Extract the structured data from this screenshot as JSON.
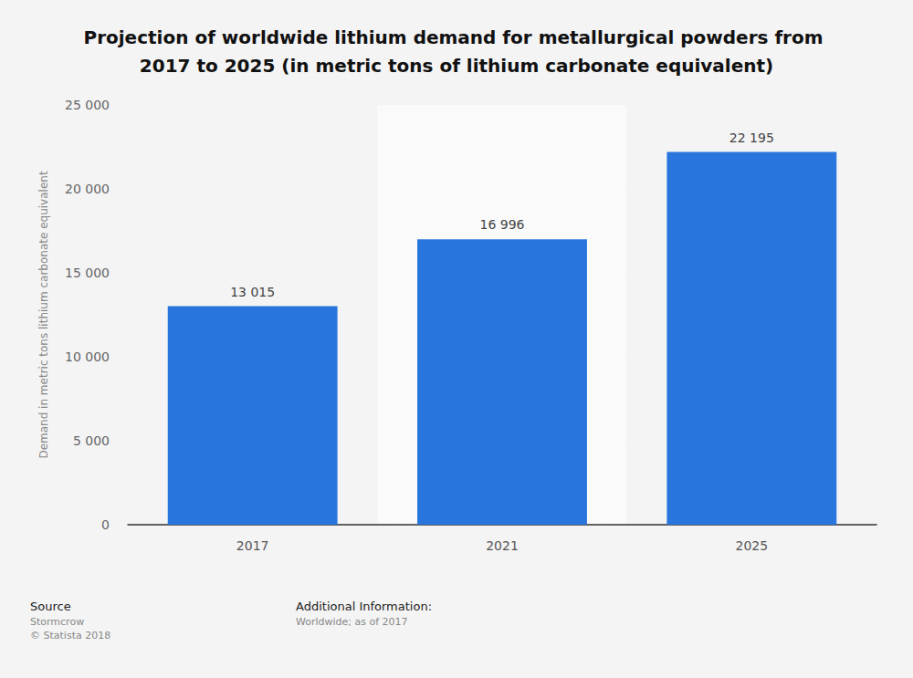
{
  "chart_data": {
    "type": "bar",
    "title": "Projection of worldwide lithium demand for metallurgical powders from 2017 to 2025 (in metric tons of lithium carbonate equivalent)",
    "y_label": "Demand in metric tons lithium carbonate equivalent",
    "categories": [
      "2017",
      "2021",
      "2025"
    ],
    "values": [
      13015,
      16996,
      22195
    ],
    "value_labels": [
      "13 015",
      "16 996",
      "22 195"
    ],
    "color": "#2876dd",
    "ylim": [
      0,
      25000
    ],
    "yticks": [
      0,
      {
        "value": 5000,
        "label": "5 000"
      },
      {
        "value": 10000,
        "label": "10 000"
      },
      {
        "value": 15000,
        "label": "15 000"
      },
      {
        "value": 20000,
        "label": "20 000"
      },
      {
        "value": 25000,
        "label": "25 000"
      }
    ],
    "grid": true,
    "data_labels": true,
    "source": {
      "heading": "Source",
      "lines": [
        "Stormcrow",
        "© Statista 2018"
      ]
    },
    "additional_information": {
      "heading": "Additional Information:",
      "lines": [
        "Worldwide; as of 2017"
      ]
    }
  }
}
